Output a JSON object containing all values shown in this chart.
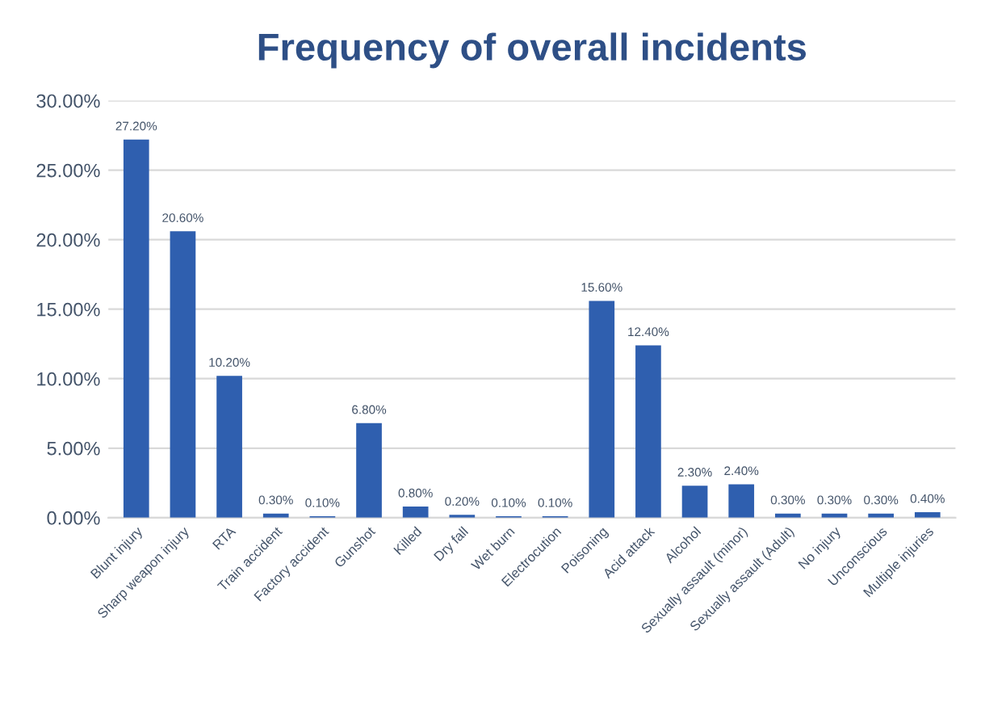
{
  "chart_data": {
    "type": "bar",
    "title": "Frequency of overall incidents",
    "categories": [
      "Blunt injury",
      "Sharp weapon injury",
      "RTA",
      "Train accident",
      "Factory accident",
      "Gunshot",
      "Killed",
      "Dry fall",
      "Wet burn",
      "Electrocution",
      "Poisoning",
      "Acid attack",
      "Alcohol",
      "Sexually assault (minor)",
      "Sexually assault (Adult)",
      "No injury",
      "Unconscious",
      "Multiple injuries"
    ],
    "values": [
      27.2,
      20.6,
      10.2,
      0.3,
      0.1,
      6.8,
      0.8,
      0.2,
      0.1,
      0.1,
      15.6,
      12.4,
      2.3,
      2.4,
      0.3,
      0.3,
      0.3,
      0.4
    ],
    "value_labels": [
      "27.20%",
      "20.60%",
      "10.20%",
      "0.30%",
      "0.10%",
      "6.80%",
      "0.80%",
      "0.20%",
      "0.10%",
      "0.10%",
      "15.60%",
      "12.40%",
      "2.30%",
      "2.40%",
      "0.30%",
      "0.30%",
      "0.30%",
      "0.40%"
    ],
    "color": "#2f5faf",
    "ylim": [
      0,
      30
    ],
    "yticks": [
      {
        "value": 0,
        "label": "0.00%"
      },
      {
        "value": 5,
        "label": "5.00%"
      },
      {
        "value": 10,
        "label": "10.00%"
      },
      {
        "value": 15,
        "label": "15.00%"
      },
      {
        "value": 20,
        "label": "20.00%"
      },
      {
        "value": 25,
        "label": "25.00%"
      },
      {
        "value": 30,
        "label": "30.00%"
      }
    ],
    "grid": "y"
  }
}
